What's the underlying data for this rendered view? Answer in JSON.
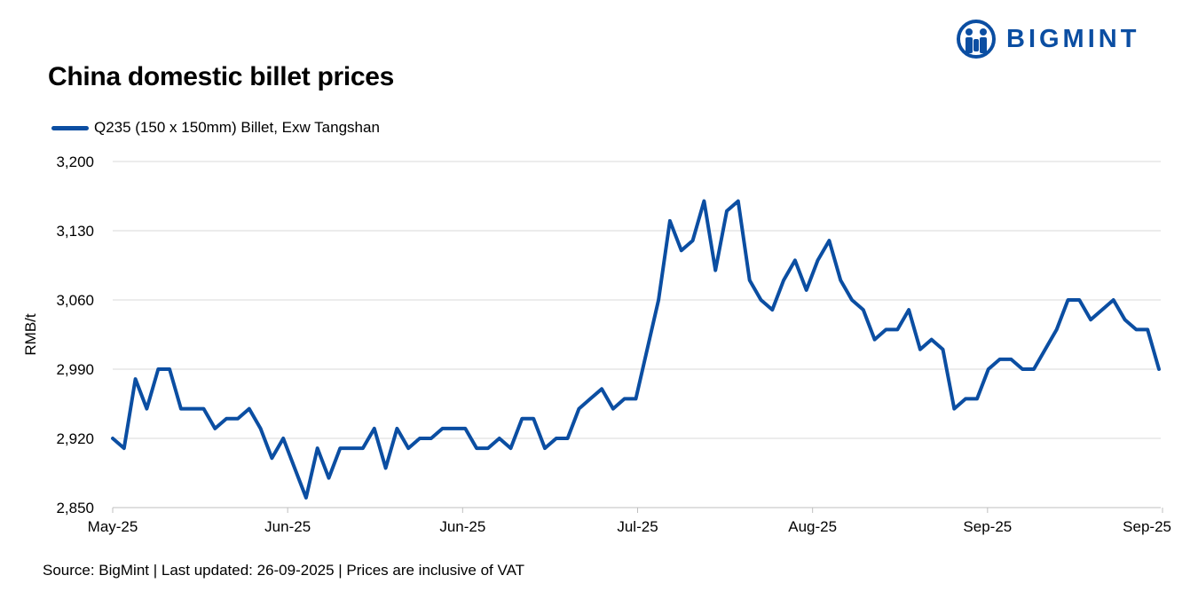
{
  "brand": {
    "name": "BIGMINT",
    "color": "#0b4ea2",
    "icon": "bigmint-logo-icon"
  },
  "source_note": "Source: BigMint | Last updated: 26-09-2025 | Prices are inclusive of VAT",
  "chart_data": {
    "type": "line",
    "title": "China domestic billet prices",
    "ylabel": "RMB/t",
    "xlabel": "",
    "ylim": [
      2850,
      3200
    ],
    "yticks": [
      2850,
      2920,
      2990,
      3060,
      3130,
      3200
    ],
    "ytick_labels": [
      "2,850",
      "2,920",
      "2,990",
      "3,060",
      "3,130",
      "3,200"
    ],
    "xtick_labels": [
      "May-25",
      "Jun-25",
      "Jun-25",
      "Jul-25",
      "Aug-25",
      "Sep-25",
      "Sep-25"
    ],
    "grid": true,
    "legend_position": "top-left",
    "series": [
      {
        "name": "Q235 (150 x 150mm) Billet, Exw Tangshan",
        "color": "#0b4ea2",
        "values": [
          2920,
          2910,
          2980,
          2950,
          2990,
          2990,
          2950,
          2950,
          2950,
          2930,
          2940,
          2940,
          2950,
          2930,
          2900,
          2920,
          2890,
          2860,
          2910,
          2880,
          2910,
          2910,
          2910,
          2930,
          2890,
          2930,
          2910,
          2920,
          2920,
          2930,
          2930,
          2930,
          2910,
          2910,
          2920,
          2910,
          2940,
          2940,
          2910,
          2920,
          2920,
          2950,
          2960,
          2970,
          2950,
          2960,
          2960,
          3010,
          3060,
          3140,
          3110,
          3120,
          3160,
          3090,
          3150,
          3160,
          3080,
          3060,
          3050,
          3080,
          3100,
          3070,
          3100,
          3120,
          3080,
          3060,
          3050,
          3020,
          3030,
          3030,
          3050,
          3010,
          3020,
          3010,
          2950,
          2960,
          2960,
          2990,
          3000,
          3000,
          2990,
          2990,
          3010,
          3030,
          3060,
          3060,
          3040,
          3050,
          3060,
          3040,
          3030,
          3030,
          2990
        ]
      }
    ]
  }
}
